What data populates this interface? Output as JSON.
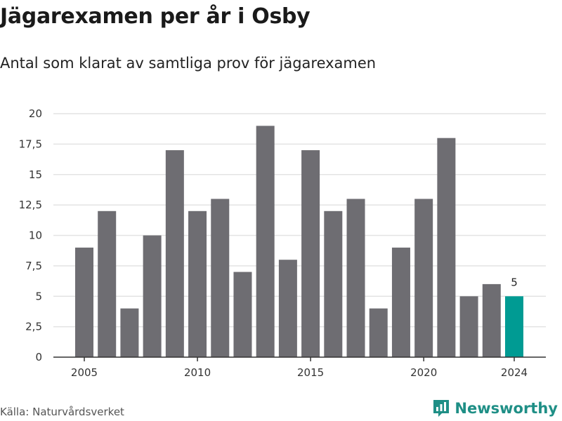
{
  "header": {
    "title": "Jägarexamen per år i Osby",
    "subtitle": "Antal som klarat av samtliga prov för jägarexamen"
  },
  "footer": {
    "source": "Källa: Naturvårdsverket",
    "brand": "Newsworthy",
    "brand_icon": "bar-chart-logo-icon"
  },
  "colors": {
    "bar": "#6e6d72",
    "highlight": "#009b93",
    "grid": "#e3e3e3",
    "axis": "#333333",
    "brand": "#1f8f86"
  },
  "chart_data": {
    "type": "bar",
    "title": "Jägarexamen per år i Osby",
    "subtitle": "Antal som klarat av samtliga prov för jägarexamen",
    "xlabel": "",
    "ylabel": "",
    "categories": [
      2005,
      2006,
      2007,
      2008,
      2009,
      2010,
      2011,
      2012,
      2013,
      2014,
      2015,
      2016,
      2017,
      2018,
      2019,
      2020,
      2021,
      2022,
      2023,
      2024
    ],
    "values": [
      9,
      12,
      4,
      10,
      17,
      12,
      13,
      7,
      19,
      8,
      17,
      12,
      13,
      4,
      9,
      13,
      18,
      5,
      6,
      5
    ],
    "highlight_category": 2024,
    "highlight_label": "5",
    "ylim": [
      0,
      20
    ],
    "yticks": [
      "0",
      "2,5",
      "5",
      "7,5",
      "10",
      "12,5",
      "15",
      "17,5",
      "20"
    ],
    "xticks": [
      "2005",
      "2010",
      "2015",
      "2020",
      "2024"
    ],
    "grid": true,
    "legend": "none"
  }
}
